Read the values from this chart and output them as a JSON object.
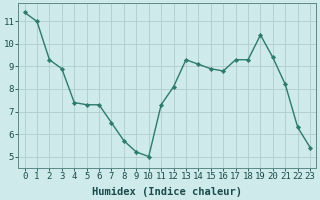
{
  "x": [
    0,
    1,
    2,
    3,
    4,
    5,
    6,
    7,
    8,
    9,
    10,
    11,
    12,
    13,
    14,
    15,
    16,
    17,
    18,
    19,
    20,
    21,
    22,
    23
  ],
  "y": [
    11.4,
    11.0,
    9.3,
    8.9,
    7.4,
    7.3,
    7.3,
    6.5,
    5.7,
    5.2,
    5.0,
    7.3,
    8.1,
    9.3,
    9.1,
    8.9,
    8.8,
    9.3,
    9.3,
    10.4,
    9.4,
    8.2,
    6.3,
    5.4
  ],
  "line_color": "#2d7a6e",
  "marker": "D",
  "marker_size": 2.2,
  "bg_color": "#ceeaea",
  "grid_color": "#b0cccc",
  "xlabel": "Humidex (Indice chaleur)",
  "xlim": [
    -0.5,
    23.5
  ],
  "ylim": [
    4.5,
    11.8
  ],
  "yticks": [
    5,
    6,
    7,
    8,
    9,
    10,
    11
  ],
  "xticks": [
    0,
    1,
    2,
    3,
    4,
    5,
    6,
    7,
    8,
    9,
    10,
    11,
    12,
    13,
    14,
    15,
    16,
    17,
    18,
    19,
    20,
    21,
    22,
    23
  ],
  "tick_fontsize": 6.5,
  "label_fontsize": 7.5
}
